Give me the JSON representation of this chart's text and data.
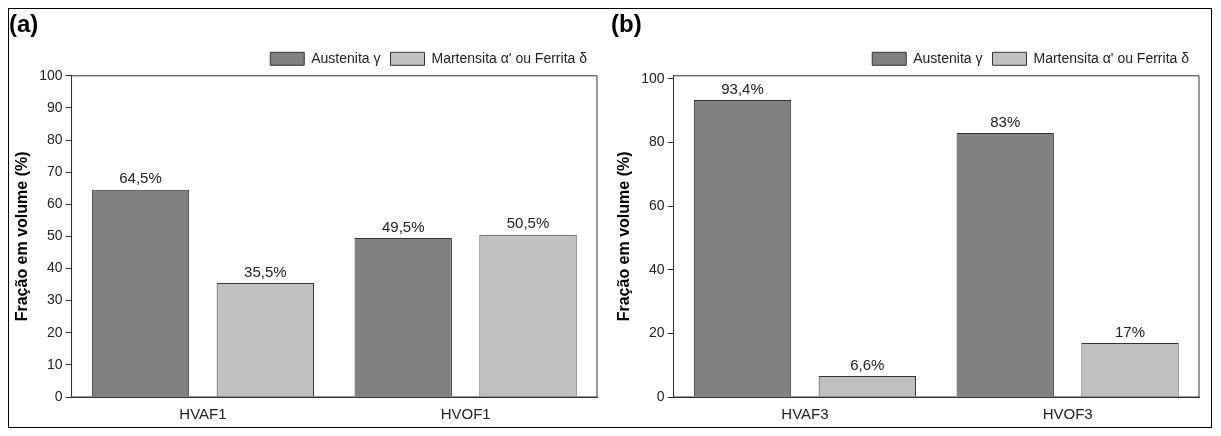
{
  "chart_data": [
    {
      "type": "bar",
      "title": "(a)",
      "ylabel": "Fração em volume (%)",
      "categories": [
        "HVAF1",
        "HVOF1"
      ],
      "series": [
        {
          "name": "Austenita γ",
          "color": "#808080",
          "values": [
            64.5,
            49.5
          ],
          "value_labels": [
            "64,5%",
            "49,5%"
          ]
        },
        {
          "name": "Martensita α' ou Ferrita δ",
          "color": "#c0c0c0",
          "values": [
            35.5,
            50.5
          ],
          "value_labels": [
            "35,5%",
            "50,5%"
          ]
        }
      ],
      "ylim": [
        0,
        100
      ],
      "yticks": [
        0,
        10,
        20,
        30,
        40,
        50,
        60,
        70,
        80,
        90,
        100
      ],
      "grid": false,
      "legend": "top right"
    },
    {
      "type": "bar",
      "title": "(b)",
      "ylabel": "Fração em volume (%)",
      "categories": [
        "HVAF3",
        "HVOF3"
      ],
      "series": [
        {
          "name": "Austenita γ",
          "color": "#808080",
          "values": [
            93.4,
            83
          ],
          "value_labels": [
            "93,4%",
            "83%"
          ]
        },
        {
          "name": "Martensita α' ou Ferrita δ",
          "color": "#c0c0c0",
          "values": [
            6.6,
            17
          ],
          "value_labels": [
            "6,6%",
            "17%"
          ]
        }
      ],
      "ylim": [
        0,
        101
      ],
      "yticks": [
        0,
        20,
        40,
        60,
        80,
        100
      ],
      "grid": false,
      "legend": "top right"
    }
  ]
}
